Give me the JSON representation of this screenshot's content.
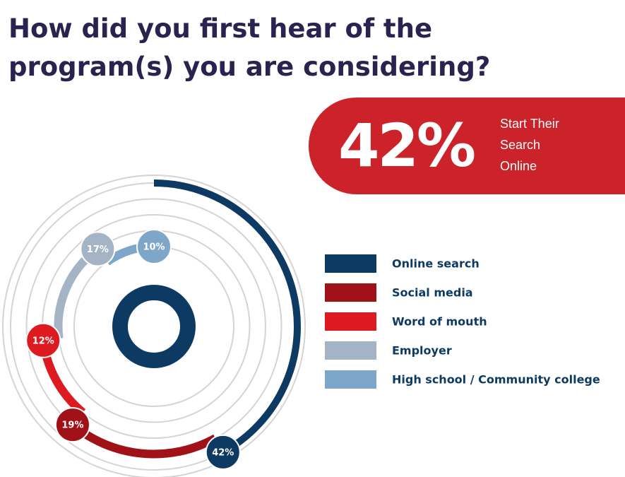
{
  "chart_data": {
    "type": "radial-bar",
    "title": "How did you first hear of the program(s) you are considering?",
    "callout": {
      "label": "42%",
      "text": "Start Their Search Online"
    },
    "categories": [
      "Online search",
      "Social media",
      "Word of mouth",
      "Employer",
      "High school / Community college"
    ],
    "values": [
      42,
      19,
      12,
      17,
      10
    ],
    "value_labels": [
      "42%",
      "19%",
      "12%",
      "17%",
      "10%"
    ],
    "colors": [
      "#0d3a63",
      "#a11218",
      "#dd1a1f",
      "#a4b4c4",
      "#7ea6c8"
    ]
  }
}
